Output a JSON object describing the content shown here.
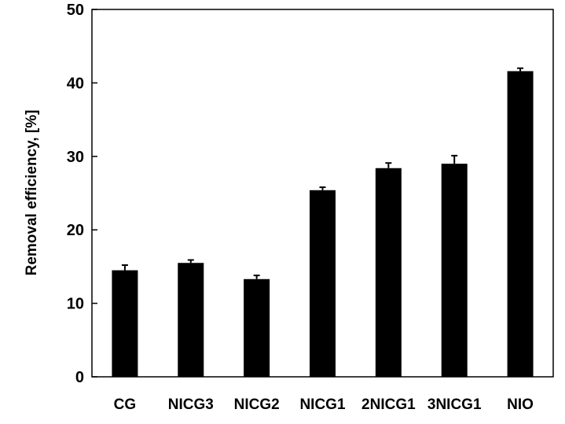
{
  "chart_data": {
    "type": "bar",
    "title": "",
    "xlabel": "",
    "ylabel": "Removal efficiency, [%]",
    "ylim": [
      0,
      50
    ],
    "yticks": [
      0,
      10,
      20,
      30,
      40,
      50
    ],
    "grid": false,
    "legend": "none",
    "categories": [
      "CG",
      "NICG3",
      "NICG2",
      "NICG1",
      "2NICG1",
      "3NICG1",
      "NIO"
    ],
    "values": [
      14.5,
      15.5,
      13.3,
      25.4,
      28.4,
      29.0,
      41.6
    ],
    "errors": [
      0.7,
      0.4,
      0.5,
      0.4,
      0.7,
      1.1,
      0.4
    ],
    "bar_color": "#000000"
  }
}
